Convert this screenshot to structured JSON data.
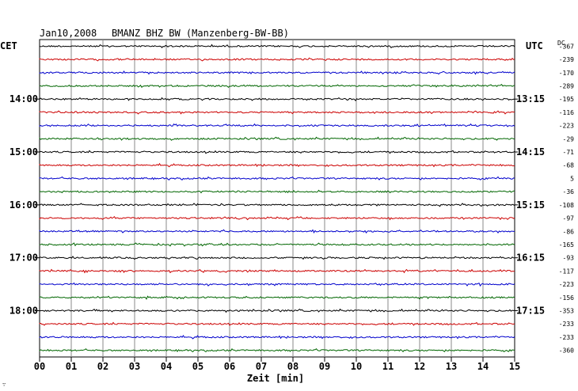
{
  "header": {
    "date": "Jan10,2008",
    "station": "BMANZ BHZ BW (Manzenberg-BW-BB)"
  },
  "labels": {
    "left_zone": "CET",
    "right_zone": "UTC",
    "dc": "DC",
    "xlabel": "Zeit [min]",
    "corner_mark": "∵"
  },
  "colors": {
    "trace_cycle": [
      "#000000",
      "#cc0000",
      "#0000cc",
      "#006600"
    ],
    "grid": "#888888",
    "background": "#ffffff"
  },
  "chart_data": {
    "type": "line",
    "title": "Jan10,2008   BMANZ BHZ BW (Manzenberg-BW-BB)",
    "xlabel": "Zeit [min]",
    "xlim": [
      0,
      15
    ],
    "x_ticks": [
      "00",
      "01",
      "02",
      "03",
      "04",
      "05",
      "06",
      "07",
      "08",
      "09",
      "10",
      "11",
      "12",
      "13",
      "14",
      "15"
    ],
    "rows": 24,
    "left_hour_labels": [
      {
        "row": 4,
        "label": "14:00"
      },
      {
        "row": 8,
        "label": "15:00"
      },
      {
        "row": 12,
        "label": "16:00"
      },
      {
        "row": 16,
        "label": "17:00"
      },
      {
        "row": 20,
        "label": "18:00"
      }
    ],
    "right_hour_labels": [
      {
        "row": 4,
        "label": "13:15"
      },
      {
        "row": 8,
        "label": "14:15"
      },
      {
        "row": 12,
        "label": "15:15"
      },
      {
        "row": 16,
        "label": "16:15"
      },
      {
        "row": 20,
        "label": "17:15"
      }
    ],
    "dc_offsets": [
      "-367",
      "-239",
      "-170",
      "-289",
      "-195",
      "-116",
      "-223",
      "-29",
      "-71",
      "-68",
      "5",
      "-36",
      "-108",
      "-97",
      "-86",
      "-165",
      "-93",
      "-117",
      "-223",
      "-156",
      "-353",
      "-233",
      "-233",
      "-360"
    ],
    "grid": true
  }
}
